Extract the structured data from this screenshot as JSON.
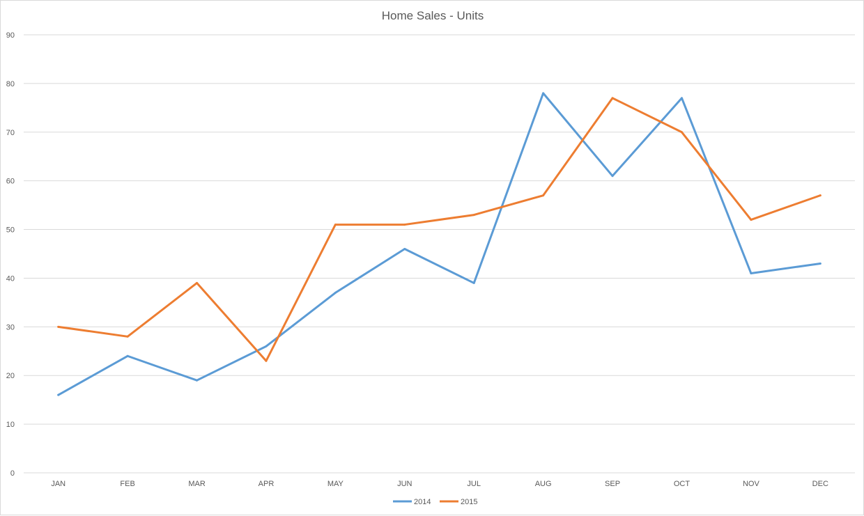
{
  "chart_data": {
    "type": "line",
    "title": "Home Sales - Units",
    "xlabel": "",
    "ylabel": "",
    "categories": [
      "JAN",
      "FEB",
      "MAR",
      "APR",
      "MAY",
      "JUN",
      "JUL",
      "AUG",
      "SEP",
      "OCT",
      "NOV",
      "DEC"
    ],
    "series": [
      {
        "name": "2014",
        "color": "#5b9bd5",
        "values": [
          16,
          24,
          19,
          26,
          37,
          46,
          39,
          78,
          61,
          77,
          41,
          43
        ]
      },
      {
        "name": "2015",
        "color": "#ed7d31",
        "values": [
          30,
          28,
          39,
          23,
          51,
          51,
          53,
          57,
          77,
          70,
          52,
          57
        ]
      }
    ],
    "ylim": [
      0,
      90
    ],
    "yticks": [
      0,
      10,
      20,
      30,
      40,
      50,
      60,
      70,
      80,
      90
    ],
    "grid": true,
    "legend_position": "bottom"
  }
}
